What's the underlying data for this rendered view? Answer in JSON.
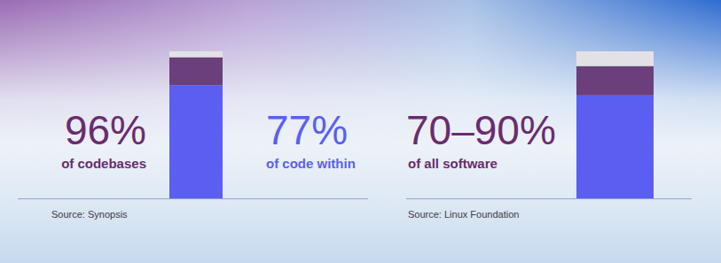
{
  "chart_data": [
    {
      "type": "bar",
      "stacked": true,
      "categories": [
        null
      ],
      "series": [
        {
          "color": "#5a5ff2",
          "values": [
            77
          ]
        },
        {
          "color": "#6b3f7c",
          "values": [
            19
          ]
        },
        {
          "color": "#e2e2e6",
          "values": [
            4
          ]
        }
      ],
      "ylim": [
        0,
        100
      ],
      "tick_labels": false,
      "annotations": [
        {
          "text": "96%",
          "color": "#6a2c6e"
        },
        {
          "text": "of codebases",
          "color": "#6a2c6e"
        },
        {
          "text": "77%",
          "color": "#5a5ff2"
        },
        {
          "text": "of code within",
          "color": "#5a5ff2"
        }
      ],
      "source": "Source: Synopsis"
    },
    {
      "type": "bar",
      "stacked": true,
      "categories": [
        null
      ],
      "series": [
        {
          "color": "#5a5ff2",
          "values": [
            70
          ]
        },
        {
          "color": "#6b3f7c",
          "values": [
            20
          ]
        },
        {
          "color": "#e2e2e6",
          "values": [
            10
          ]
        }
      ],
      "ylim": [
        0,
        100
      ],
      "tick_labels": false,
      "annotations": [
        {
          "text": "70–90%",
          "color": "#6a2c6e"
        },
        {
          "text": "of all software",
          "color": "#6a2c6e"
        }
      ],
      "source": "Source: Linux Foundation"
    }
  ]
}
